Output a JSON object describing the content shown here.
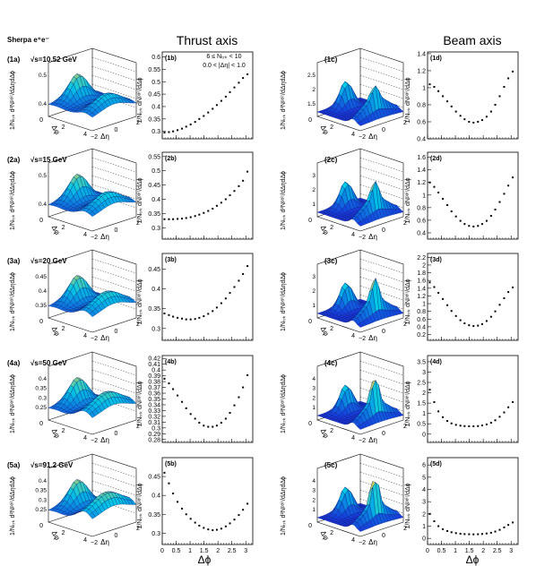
{
  "header": {
    "generator": "Sherpa e⁺e⁻",
    "thrust_title": "Thrust axis",
    "beam_title": "Beam axis",
    "cuts_line1": "6 ≤ Nₜᵣₖ < 10",
    "cuts_line2": "0.0 < |Δη| < 1.0",
    "x_axis_title": "Δϕ"
  },
  "surface_axis": {
    "dphi_label": "Δφ",
    "deta_label": "Δη",
    "dphi_ticks": [
      "0",
      "2",
      "4"
    ],
    "deta_ticks": [
      "−2",
      "0",
      "2"
    ]
  },
  "ylabels": {
    "surface": "1/Nₜᵣₖ d²Nᵖᵃⁱʳ/dΔηdΔϕ",
    "projection": "1/Nₜᵣₖ dNᵖᵃⁱʳ/dΔϕ"
  },
  "colors": {
    "surface_low": "#1a1adc",
    "surface_mid": "#00c8e6",
    "surface_high": "#f0d040",
    "marker": "#000000"
  },
  "rows": [
    {
      "energy": "√s=10.52 GeV",
      "labels": {
        "a": "(1a)",
        "b": "(1b)",
        "c": "(1c)",
        "d": "(1d)"
      },
      "surface_a_ticks": [
        "0.4",
        "0.5"
      ],
      "surface_c_ticks": [
        "1.5",
        "2",
        "2.5"
      ],
      "b_yticks": [
        {
          "v": 0.3,
          "t": "0.3"
        },
        {
          "v": 0.35,
          "t": "0.35"
        },
        {
          "v": 0.4,
          "t": "0.4"
        },
        {
          "v": 0.45,
          "t": "0.45"
        },
        {
          "v": 0.5,
          "t": "0.5"
        },
        {
          "v": 0.55,
          "t": "0.55"
        },
        {
          "v": 0.6,
          "t": "0.6"
        }
      ],
      "d_yticks": [
        {
          "v": 0.4,
          "t": "0.4"
        },
        {
          "v": 0.6,
          "t": "0.6"
        },
        {
          "v": 0.8,
          "t": "0.8"
        },
        {
          "v": 1.0,
          "t": "1"
        },
        {
          "v": 1.2,
          "t": "1.2"
        },
        {
          "v": 1.4,
          "t": "1.4"
        }
      ]
    },
    {
      "energy": "√s=15 GeV",
      "labels": {
        "a": "(2a)",
        "b": "(2b)",
        "c": "(2c)",
        "d": "(2d)"
      },
      "surface_a_ticks": [
        "0.4",
        "0.5"
      ],
      "surface_c_ticks": [
        "1",
        "2",
        "3"
      ],
      "b_yticks": [
        {
          "v": 0.3,
          "t": "0.3"
        },
        {
          "v": 0.35,
          "t": "0.35"
        },
        {
          "v": 0.4,
          "t": "0.4"
        },
        {
          "v": 0.45,
          "t": "0.45"
        },
        {
          "v": 0.5,
          "t": "0.5"
        },
        {
          "v": 0.55,
          "t": "0.55"
        }
      ],
      "d_yticks": [
        {
          "v": 0.4,
          "t": "0.4"
        },
        {
          "v": 0.6,
          "t": "0.6"
        },
        {
          "v": 0.8,
          "t": "0.8"
        },
        {
          "v": 1.0,
          "t": "1"
        },
        {
          "v": 1.2,
          "t": "1.2"
        },
        {
          "v": 1.4,
          "t": "1.4"
        },
        {
          "v": 1.6,
          "t": "1.6"
        }
      ]
    },
    {
      "energy": "√s=20 GeV",
      "labels": {
        "a": "(3a)",
        "b": "(3b)",
        "c": "(3c)",
        "d": "(3d)"
      },
      "surface_a_ticks": [
        "0.35",
        "0.4",
        "0.45"
      ],
      "surface_c_ticks": [
        "1",
        "2",
        "3"
      ],
      "b_yticks": [
        {
          "v": 0.3,
          "t": "0.3"
        },
        {
          "v": 0.35,
          "t": "0.35"
        },
        {
          "v": 0.4,
          "t": "0.4"
        },
        {
          "v": 0.45,
          "t": "0.45"
        }
      ],
      "d_yticks": [
        {
          "v": 0.2,
          "t": "0.2"
        },
        {
          "v": 0.4,
          "t": "0.4"
        },
        {
          "v": 0.6,
          "t": "0.6"
        },
        {
          "v": 0.8,
          "t": "0.8"
        },
        {
          "v": 1.0,
          "t": "1"
        },
        {
          "v": 1.2,
          "t": "1.2"
        },
        {
          "v": 1.4,
          "t": "1.4"
        },
        {
          "v": 1.6,
          "t": "1.6"
        },
        {
          "v": 1.8,
          "t": "1.8"
        },
        {
          "v": 2.0,
          "t": "2"
        },
        {
          "v": 2.2,
          "t": "2.2"
        }
      ]
    },
    {
      "energy": "√s=50 GeV",
      "labels": {
        "a": "(4a)",
        "b": "(4b)",
        "c": "(4c)",
        "d": "(4d)"
      },
      "surface_a_ticks": [
        "0.25",
        "0.3",
        "0.35",
        "0.4"
      ],
      "surface_c_ticks": [
        "1",
        "2",
        "3",
        "4"
      ],
      "b_yticks": [
        {
          "v": 0.28,
          "t": "0.28"
        },
        {
          "v": 0.29,
          "t": "0.29"
        },
        {
          "v": 0.3,
          "t": "0.3"
        },
        {
          "v": 0.31,
          "t": "0.31"
        },
        {
          "v": 0.32,
          "t": "0.32"
        },
        {
          "v": 0.33,
          "t": "0.33"
        },
        {
          "v": 0.34,
          "t": "0.34"
        },
        {
          "v": 0.35,
          "t": "0.35"
        },
        {
          "v": 0.36,
          "t": "0.36"
        },
        {
          "v": 0.37,
          "t": "0.37"
        },
        {
          "v": 0.38,
          "t": "0.38"
        },
        {
          "v": 0.39,
          "t": "0.39"
        },
        {
          "v": 0.4,
          "t": "0.4"
        },
        {
          "v": 0.41,
          "t": "0.41"
        },
        {
          "v": 0.42,
          "t": "0.42"
        }
      ],
      "d_yticks": [
        {
          "v": 0,
          "t": "0"
        },
        {
          "v": 0.5,
          "t": "0.5"
        },
        {
          "v": 1.0,
          "t": "1"
        },
        {
          "v": 1.5,
          "t": "1.5"
        },
        {
          "v": 2.0,
          "t": "2"
        },
        {
          "v": 2.5,
          "t": "2.5"
        },
        {
          "v": 3.0,
          "t": "3"
        },
        {
          "v": 3.5,
          "t": "3.5"
        }
      ]
    },
    {
      "energy": "√s=91.2 GeV",
      "labels": {
        "a": "(5a)",
        "b": "(5b)",
        "c": "(5c)",
        "d": "(5d)"
      },
      "surface_a_ticks": [
        "0.25",
        "0.3",
        "0.35",
        "0.4"
      ],
      "surface_c_ticks": [
        "1",
        "2",
        "3",
        "4"
      ],
      "b_yticks": [
        {
          "v": 0.3,
          "t": "0.3"
        },
        {
          "v": 0.35,
          "t": "0.35"
        },
        {
          "v": 0.4,
          "t": "0.4"
        },
        {
          "v": 0.45,
          "t": "0.45"
        }
      ],
      "d_yticks": [
        {
          "v": 0,
          "t": "0"
        },
        {
          "v": 1,
          "t": "1"
        },
        {
          "v": 2,
          "t": "2"
        },
        {
          "v": 3,
          "t": "3"
        },
        {
          "v": 4,
          "t": "4"
        },
        {
          "v": 5,
          "t": "5"
        },
        {
          "v": 6,
          "t": "6"
        }
      ]
    }
  ],
  "chart_data": [
    {
      "type": "scatter",
      "panel": "(1b)",
      "ylim": [
        0.27,
        0.62
      ],
      "x": [
        0.08,
        0.24,
        0.39,
        0.55,
        0.71,
        0.86,
        1.02,
        1.18,
        1.33,
        1.49,
        1.65,
        1.81,
        1.96,
        2.12,
        2.28,
        2.43,
        2.59,
        2.75,
        2.9,
        3.06
      ],
      "y": [
        0.295,
        0.297,
        0.3,
        0.305,
        0.311,
        0.319,
        0.328,
        0.338,
        0.35,
        0.362,
        0.376,
        0.391,
        0.406,
        0.423,
        0.44,
        0.458,
        0.477,
        0.496,
        0.515,
        0.53
      ]
    },
    {
      "type": "scatter",
      "panel": "(1d)",
      "ylim": [
        0.4,
        1.42
      ],
      "x": [
        0.08,
        0.24,
        0.39,
        0.55,
        0.71,
        0.86,
        1.02,
        1.18,
        1.33,
        1.49,
        1.65,
        1.81,
        1.96,
        2.12,
        2.28,
        2.43,
        2.59,
        2.75,
        2.9,
        3.06
      ],
      "y": [
        1.04,
        1.01,
        0.96,
        0.9,
        0.84,
        0.78,
        0.72,
        0.67,
        0.63,
        0.6,
        0.59,
        0.6,
        0.62,
        0.66,
        0.72,
        0.8,
        0.9,
        1.01,
        1.11,
        1.19
      ]
    },
    {
      "type": "scatter",
      "panel": "(2b)",
      "ylim": [
        0.26,
        0.565
      ],
      "x": [
        0.08,
        0.24,
        0.39,
        0.55,
        0.71,
        0.86,
        1.02,
        1.18,
        1.33,
        1.49,
        1.65,
        1.81,
        1.96,
        2.12,
        2.28,
        2.43,
        2.59,
        2.75,
        2.9,
        3.06
      ],
      "y": [
        0.33,
        0.33,
        0.33,
        0.331,
        0.332,
        0.334,
        0.337,
        0.341,
        0.346,
        0.352,
        0.359,
        0.367,
        0.377,
        0.388,
        0.4,
        0.414,
        0.429,
        0.446,
        0.465,
        0.497
      ]
    },
    {
      "type": "scatter",
      "panel": "(2d)",
      "ylim": [
        0.3,
        1.68
      ],
      "x": [
        0.08,
        0.24,
        0.39,
        0.55,
        0.71,
        0.86,
        1.02,
        1.18,
        1.33,
        1.49,
        1.65,
        1.81,
        1.96,
        2.12,
        2.28,
        2.43,
        2.59,
        2.75,
        2.9,
        3.06
      ],
      "y": [
        1.2,
        1.13,
        1.04,
        0.94,
        0.84,
        0.74,
        0.66,
        0.59,
        0.54,
        0.51,
        0.5,
        0.51,
        0.54,
        0.59,
        0.67,
        0.77,
        0.89,
        1.02,
        1.15,
        1.28
      ]
    },
    {
      "type": "scatter",
      "panel": "(3b)",
      "ylim": [
        0.27,
        0.49
      ],
      "x": [
        0.08,
        0.24,
        0.39,
        0.55,
        0.71,
        0.86,
        1.02,
        1.18,
        1.33,
        1.49,
        1.65,
        1.81,
        1.96,
        2.12,
        2.28,
        2.43,
        2.59,
        2.75,
        2.9,
        3.06
      ],
      "y": [
        0.338,
        0.334,
        0.33,
        0.327,
        0.325,
        0.323,
        0.323,
        0.324,
        0.327,
        0.331,
        0.337,
        0.344,
        0.353,
        0.364,
        0.376,
        0.39,
        0.405,
        0.421,
        0.438,
        0.458
      ]
    },
    {
      "type": "scatter",
      "panel": "(3d)",
      "ylim": [
        0.05,
        2.3
      ],
      "x": [
        0.08,
        0.24,
        0.39,
        0.55,
        0.71,
        0.86,
        1.02,
        1.18,
        1.33,
        1.49,
        1.65,
        1.81,
        1.96,
        2.12,
        2.28,
        2.43,
        2.59,
        2.75,
        2.9,
        3.06
      ],
      "y": [
        1.55,
        1.43,
        1.28,
        1.12,
        0.96,
        0.81,
        0.68,
        0.57,
        0.49,
        0.44,
        0.42,
        0.43,
        0.47,
        0.55,
        0.66,
        0.8,
        0.97,
        1.14,
        1.3,
        1.42
      ]
    },
    {
      "type": "scatter",
      "panel": "(4b)",
      "ylim": [
        0.275,
        0.425
      ],
      "x": [
        0.08,
        0.24,
        0.39,
        0.55,
        0.71,
        0.86,
        1.02,
        1.18,
        1.33,
        1.49,
        1.65,
        1.81,
        1.96,
        2.12,
        2.28,
        2.43,
        2.59,
        2.75,
        2.9,
        3.06
      ],
      "y": [
        0.385,
        0.377,
        0.367,
        0.356,
        0.345,
        0.334,
        0.324,
        0.316,
        0.309,
        0.304,
        0.302,
        0.302,
        0.304,
        0.309,
        0.316,
        0.326,
        0.339,
        0.353,
        0.37,
        0.391
      ]
    },
    {
      "type": "scatter",
      "panel": "(4d)",
      "ylim": [
        -0.4,
        3.8
      ],
      "x": [
        0.08,
        0.24,
        0.39,
        0.55,
        0.71,
        0.86,
        1.02,
        1.18,
        1.33,
        1.49,
        1.65,
        1.81,
        1.96,
        2.12,
        2.28,
        2.43,
        2.59,
        2.75,
        2.9,
        3.06
      ],
      "y": [
        2.15,
        1.55,
        1.1,
        0.82,
        0.64,
        0.52,
        0.45,
        0.41,
        0.39,
        0.38,
        0.38,
        0.39,
        0.42,
        0.47,
        0.55,
        0.67,
        0.84,
        1.05,
        1.3,
        1.55
      ]
    },
    {
      "type": "scatter",
      "panel": "(5b)",
      "ylim": [
        0.27,
        0.5
      ],
      "x": [
        0.08,
        0.24,
        0.39,
        0.55,
        0.71,
        0.86,
        1.02,
        1.18,
        1.33,
        1.49,
        1.65,
        1.81,
        1.96,
        2.12,
        2.28,
        2.43,
        2.59,
        2.75,
        2.9,
        3.06
      ],
      "y": [
        0.46,
        0.432,
        0.405,
        0.383,
        0.365,
        0.35,
        0.338,
        0.328,
        0.32,
        0.314,
        0.31,
        0.308,
        0.309,
        0.312,
        0.318,
        0.326,
        0.336,
        0.348,
        0.362,
        0.378
      ]
    },
    {
      "type": "scatter",
      "panel": "(5d)",
      "ylim": [
        -0.5,
        6.6
      ],
      "x": [
        0.08,
        0.24,
        0.39,
        0.55,
        0.71,
        0.86,
        1.02,
        1.18,
        1.33,
        1.49,
        1.65,
        1.81,
        1.96,
        2.12,
        2.28,
        2.43,
        2.59,
        2.75,
        2.9,
        3.06
      ],
      "y": [
        2.0,
        1.4,
        1.0,
        0.75,
        0.6,
        0.5,
        0.43,
        0.38,
        0.35,
        0.34,
        0.33,
        0.34,
        0.36,
        0.4,
        0.46,
        0.56,
        0.7,
        0.9,
        1.1,
        1.3
      ]
    }
  ]
}
